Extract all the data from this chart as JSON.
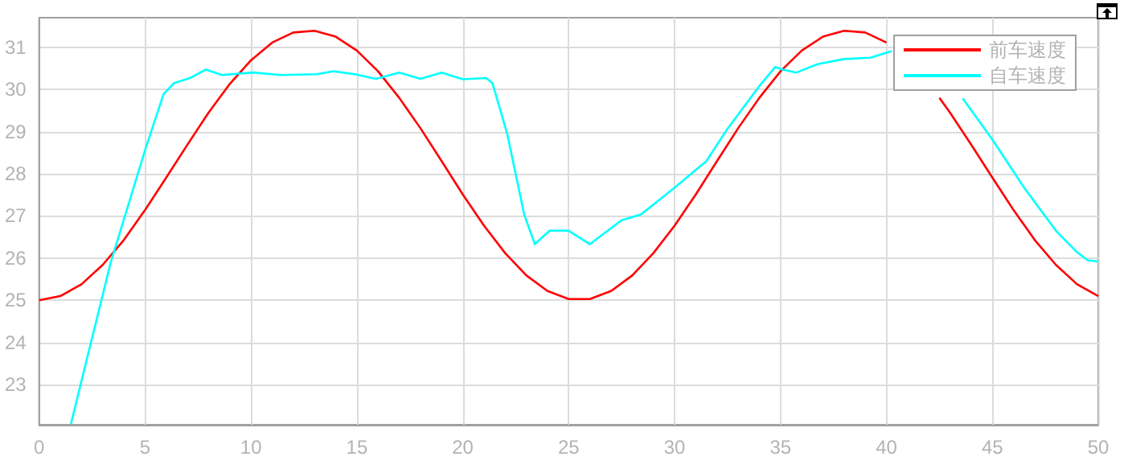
{
  "chart_data": {
    "type": "line",
    "legend": "top right",
    "grid": true,
    "marker": "none",
    "line_style": "solid",
    "xlim": [
      0,
      50
    ],
    "xticks": [
      0,
      5,
      10,
      15,
      20,
      25,
      30,
      35,
      40,
      45,
      50
    ],
    "ylim": [
      22.05,
      31.7
    ],
    "yticks": [
      23,
      24,
      25,
      26,
      27,
      28,
      29,
      30,
      31
    ],
    "series": [
      {
        "name": "前车速度",
        "color": "#ff0000",
        "x": [
          0,
          1,
          2,
          3,
          4,
          5,
          6,
          7,
          8,
          9,
          10,
          11,
          12,
          13,
          14,
          15,
          16,
          17,
          18,
          19,
          20,
          21,
          22,
          23,
          24,
          25,
          26,
          27,
          28,
          29,
          30,
          31,
          32,
          33,
          34,
          35,
          36,
          37,
          38,
          39,
          40,
          41,
          42.5,
          43,
          44,
          45,
          46,
          47,
          48,
          49,
          50
        ],
        "values": [
          25.0,
          25.1,
          25.38,
          25.84,
          26.43,
          27.14,
          27.91,
          28.69,
          29.45,
          30.13,
          30.69,
          31.11,
          31.35,
          31.39,
          31.25,
          30.92,
          30.43,
          29.8,
          29.08,
          28.3,
          27.51,
          26.77,
          26.12,
          25.59,
          25.22,
          25.03,
          25.03,
          25.22,
          25.59,
          26.12,
          26.77,
          27.51,
          28.3,
          29.08,
          29.8,
          30.43,
          30.92,
          31.25,
          31.39,
          31.35,
          31.11,
          null,
          29.8,
          29.45,
          28.69,
          27.91,
          27.14,
          26.43,
          25.84,
          25.38,
          25.1
        ]
      },
      {
        "name": "自车速度",
        "color": "#00ffff",
        "x": [
          1.5,
          3.375,
          5,
          5.875,
          6.375,
          7.125,
          7.875,
          8.625,
          10.1,
          11.4,
          13.1,
          13.9,
          14.9,
          15.9,
          17,
          18,
          19,
          20,
          21.1,
          21.4,
          22.1,
          22.9,
          23.4,
          24.1,
          25,
          26,
          27.5,
          28.4,
          30,
          31.5,
          32.5,
          34,
          34.75,
          35.1,
          35.75,
          36.75,
          38,
          39.25,
          40.25,
          42,
          43.6,
          45,
          46.5,
          48,
          49,
          49.5,
          50
        ],
        "values": [
          22.07,
          25.89,
          28.56,
          29.89,
          30.15,
          30.27,
          30.47,
          30.34,
          30.4,
          30.34,
          30.36,
          30.43,
          30.36,
          30.25,
          30.4,
          30.25,
          30.4,
          30.24,
          30.27,
          30.15,
          28.94,
          27.03,
          26.33,
          26.65,
          26.65,
          26.33,
          26.9,
          27.03,
          27.67,
          28.3,
          29.07,
          30.08,
          30.53,
          30.47,
          30.4,
          30.6,
          30.72,
          30.75,
          30.91,
          null,
          29.79,
          28.81,
          27.67,
          26.65,
          26.14,
          25.95,
          25.92
        ]
      }
    ]
  }
}
